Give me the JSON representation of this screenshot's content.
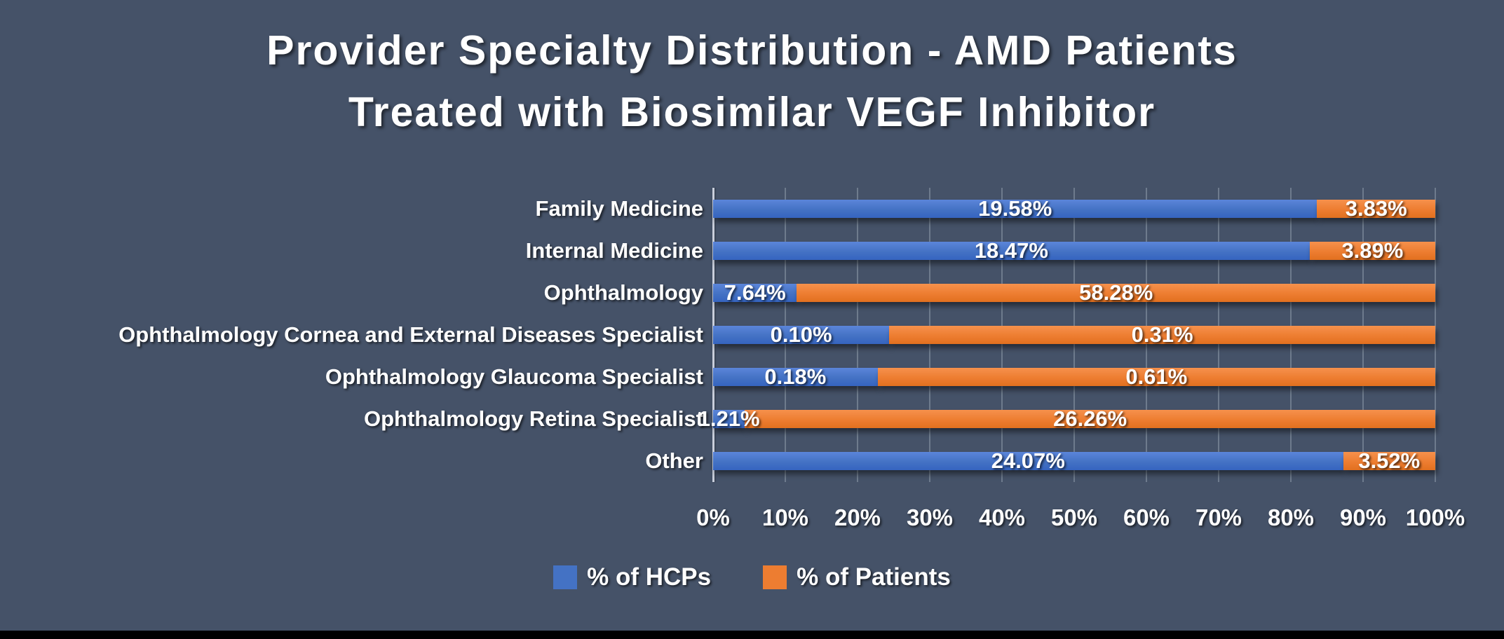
{
  "title": {
    "line1": "Provider Specialty Distribution - AMD Patients",
    "line2": "Treated with Biosimilar VEGF Inhibitor"
  },
  "chart_data": {
    "type": "bar",
    "subtype": "horizontal-100pct-stacked",
    "title": "Provider Specialty Distribution - AMD Patients Treated with Biosimilar VEGF Inhibitor",
    "categories": [
      "Family Medicine",
      "Internal Medicine",
      "Ophthalmology",
      "Ophthalmology Cornea and External Diseases Specialist",
      "Ophthalmology Glaucoma Specialist",
      "Ophthalmology Retina Specialist",
      "Other"
    ],
    "series": [
      {
        "name": "% of HCPs",
        "color": "#4472C4",
        "values": [
          19.58,
          18.47,
          7.64,
          0.1,
          0.18,
          1.21,
          24.07
        ]
      },
      {
        "name": "% of Patients",
        "color": "#ED7D31",
        "values": [
          3.83,
          3.89,
          58.28,
          0.31,
          0.61,
          26.26,
          3.52
        ]
      }
    ],
    "data_labels": {
      "hcps": [
        "19.58%",
        "18.47%",
        "7.64%",
        "0.10%",
        "0.18%",
        "1.21%",
        "24.07%"
      ],
      "patients": [
        "3.83%",
        "3.89%",
        "58.28%",
        "0.31%",
        "0.61%",
        "26.26%",
        "3.52%"
      ]
    },
    "x_axis": {
      "min": 0,
      "max": 100,
      "tick_labels": [
        "0%",
        "10%",
        "20%",
        "30%",
        "40%",
        "50%",
        "60%",
        "70%",
        "80%",
        "90%",
        "100%"
      ]
    },
    "grid": true,
    "legend_position": "bottom"
  },
  "colors": {
    "background": "#455268",
    "bar_blue": "#4472C4",
    "bar_orange": "#ED7D31",
    "text": "#FFFFFF",
    "bottom_bar": "#000000"
  }
}
